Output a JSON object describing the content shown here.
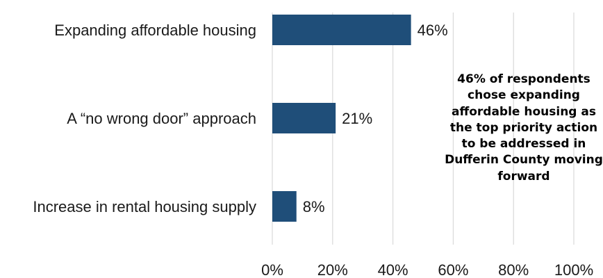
{
  "chart_data": {
    "type": "bar",
    "orientation": "horizontal",
    "categories": [
      "Expanding affordable housing",
      "A “no wrong door” approach",
      "Increase in rental housing supply"
    ],
    "values": [
      46,
      21,
      8
    ],
    "value_labels": [
      "46%",
      "21%",
      "8%"
    ],
    "x_ticks": [
      "0%",
      "20%",
      "40%",
      "60%",
      "80%",
      "100%"
    ],
    "xlim": [
      0,
      100
    ],
    "grid": "vertical",
    "bar_color": "#1f4e79",
    "annotation": "46% of respondents chose expanding affordable housing as the top priority action to be addressed in Dufferin County moving forward"
  }
}
